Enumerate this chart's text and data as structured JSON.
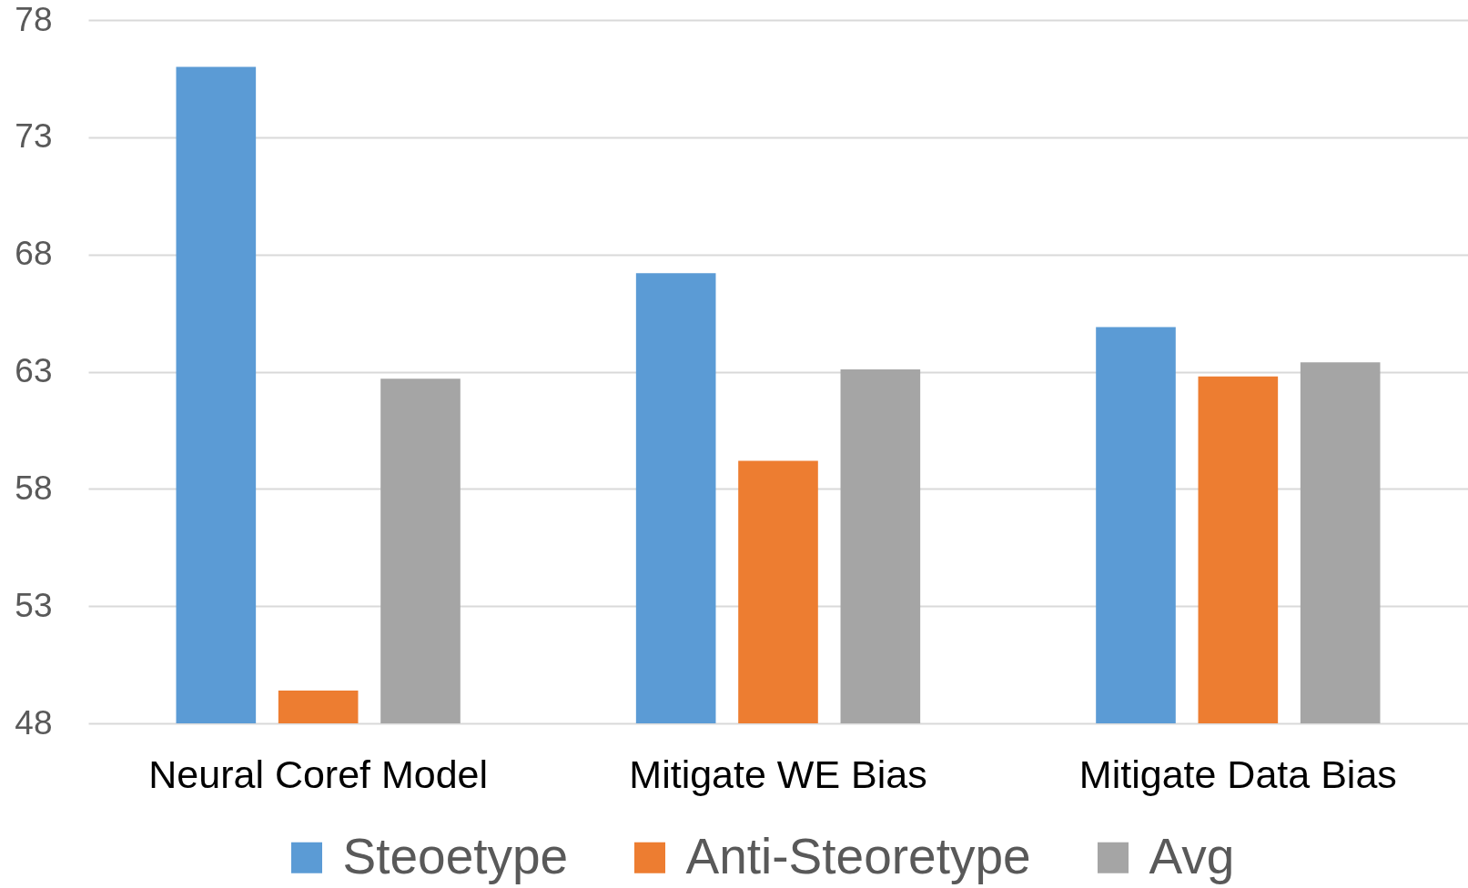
{
  "chart_data": {
    "type": "bar",
    "categories": [
      "Neural Coref Model",
      "Mitigate WE Bias",
      "Mitigate Data Bias"
    ],
    "series": [
      {
        "name": "Steoetype",
        "color": "#5b9bd5",
        "values": [
          76.0,
          67.2,
          64.9
        ]
      },
      {
        "name": "Anti-Steoretype",
        "color": "#ed7d31",
        "values": [
          49.4,
          59.2,
          62.8
        ]
      },
      {
        "name": "Avg",
        "color": "#a5a5a5",
        "values": [
          62.7,
          63.1,
          63.4
        ]
      }
    ],
    "ylim": [
      48,
      78
    ],
    "yticks": [
      48,
      53,
      58,
      63,
      68,
      73,
      78
    ],
    "grid": "y",
    "legend": "bottom"
  }
}
